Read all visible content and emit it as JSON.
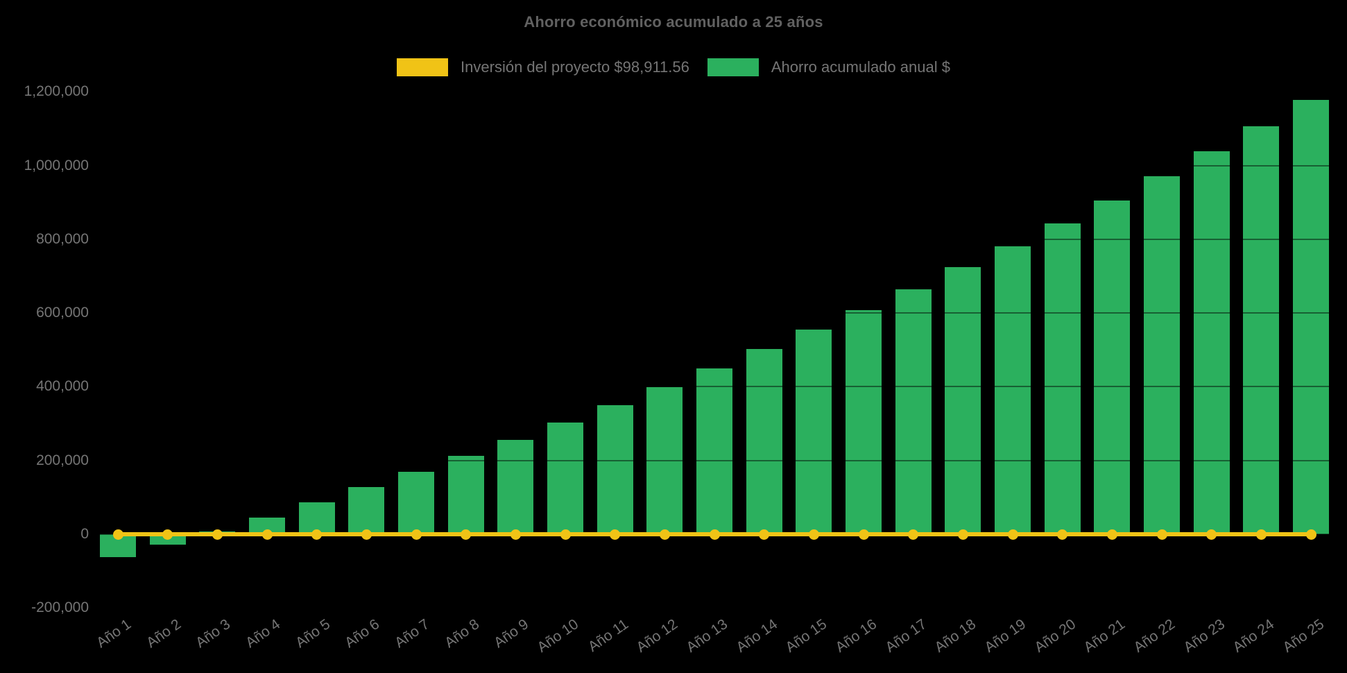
{
  "title": "Ahorro económico acumulado a 25 años",
  "colors": {
    "background": "#000000",
    "investment_yellow": "#f0c316",
    "savings_green": "#2bb05e",
    "title_text": "#616161",
    "label_text": "#757575"
  },
  "chart_data": {
    "type": "bar",
    "title": "Ahorro económico acumulado a 25 años",
    "xlabel": "",
    "ylabel": "",
    "categories": [
      "Año 1",
      "Año 2",
      "Año 3",
      "Año 4",
      "Año 5",
      "Año 6",
      "Año 7",
      "Año 8",
      "Año 9",
      "Año 10",
      "Año 11",
      "Año 12",
      "Año 13",
      "Año 14",
      "Año 15",
      "Año 16",
      "Año 17",
      "Año 18",
      "Año 19",
      "Año 20",
      "Año 21",
      "Año 22",
      "Año 23",
      "Año 24",
      "Año 25"
    ],
    "series": [
      {
        "name": "Inversión del proyecto $98,911.56",
        "type": "line",
        "color": "#f0c316",
        "values": [
          0,
          0,
          0,
          0,
          0,
          0,
          0,
          0,
          0,
          0,
          0,
          0,
          0,
          0,
          0,
          0,
          0,
          0,
          0,
          0,
          0,
          0,
          0,
          0,
          0
        ]
      },
      {
        "name": "Ahorro acumulado anual $",
        "type": "bar",
        "color": "#2bb05e",
        "values": [
          -63000,
          -29000,
          8000,
          46000,
          87000,
          127000,
          169000,
          213000,
          256000,
          303000,
          350000,
          399000,
          449000,
          502000,
          555000,
          608000,
          665000,
          724000,
          781000,
          842000,
          905000,
          971000,
          1038000,
          1106000,
          1177000
        ]
      }
    ],
    "ylim": [
      -200000,
      1200000
    ],
    "yticks": [
      1200000,
      1000000,
      800000,
      600000,
      400000,
      200000,
      0,
      -200000
    ],
    "ytick_labels": [
      "1,200,000",
      "1,000,000",
      "800,000",
      "600,000",
      "400,000",
      "200,000",
      "0",
      "-200,000"
    ],
    "grid": "off",
    "legend_position": "top",
    "investment_value": "$98,911.56"
  }
}
